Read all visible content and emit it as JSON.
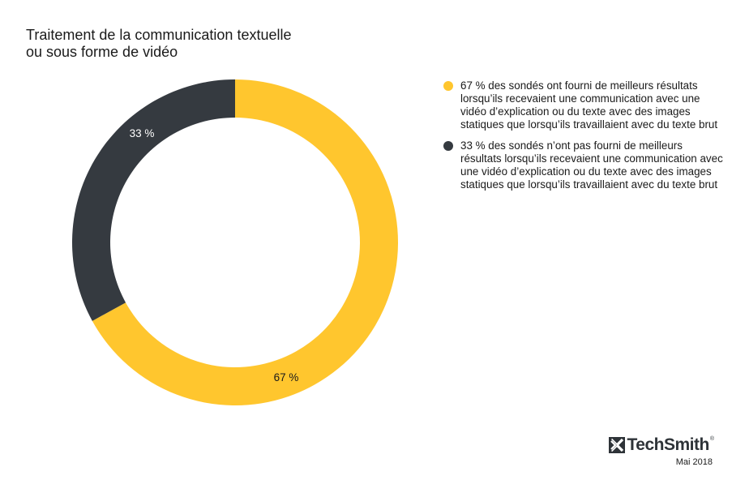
{
  "title_lines": [
    "Traitement de la communication textuelle",
    "ou sous forme de vidéo"
  ],
  "chart_data": {
    "type": "pie",
    "variant": "donut",
    "title": "Traitement de la communication textuelle ou sous forme de vidéo",
    "slices": [
      {
        "value": 67,
        "label": "67 %",
        "color": "#ffc62e",
        "legend": "67 % des sondés ont fourni de meilleurs résultats lorsqu’ils recevaient une communication avec une vidéo d’explication ou du texte avec des images statiques que lorsqu’ils travaillaient avec du texte brut",
        "label_color": "#1a1a1a"
      },
      {
        "value": 33,
        "label": "33 %",
        "color": "#353a40",
        "legend": "33 % des sondés n’ont pas fourni de meilleurs résultats lorsqu’ils recevaient une communication avec une vidéo d’explication ou du texte avec des images statiques que lorsqu’ils travaillaient avec du texte brut",
        "label_color": "#ffffff"
      }
    ],
    "legend_position": "right"
  },
  "brand": {
    "name": "TechSmith",
    "registered": "®",
    "date": "Mai 2018",
    "logo_icon": "techsmith-x-logo"
  }
}
